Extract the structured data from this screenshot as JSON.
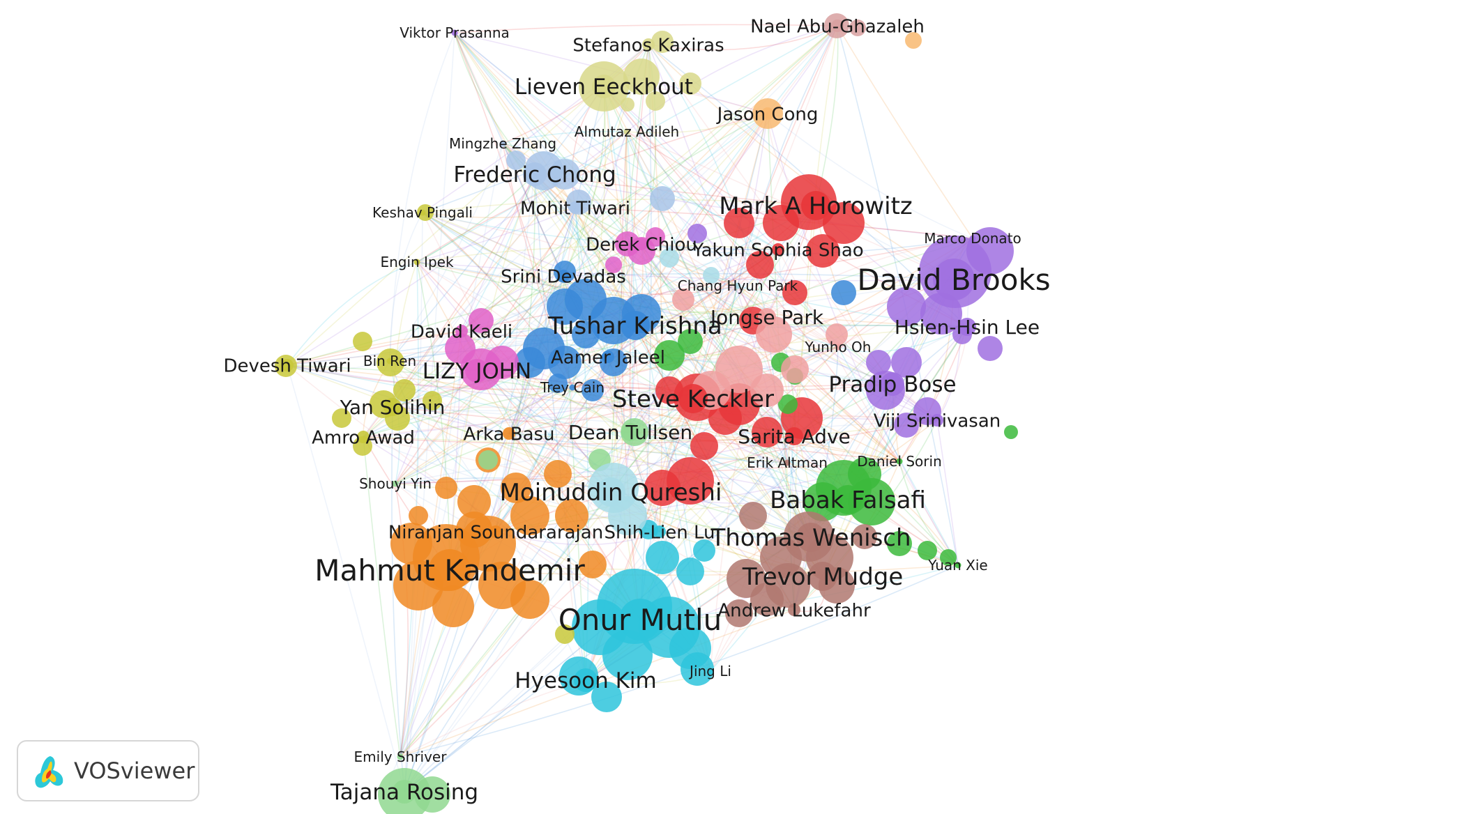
{
  "logo": {
    "name": "VOSviewer"
  },
  "palette": {
    "red": "#e8363a",
    "purple": "#a070e0",
    "green": "#3cba3c",
    "brown": "#b07870",
    "orange": "#f08a24",
    "cyan": "#2ec4dc",
    "blue": "#3a88d8",
    "yellow": "#c8c83a",
    "khaki": "#d8d88a",
    "pink": "#e060c8",
    "lightblue": "#a8c4e8",
    "salmon": "#f0a0a0",
    "lightgreen": "#90d890",
    "paleblue": "#a8dce8",
    "lightorange": "#f8b870",
    "rose": "#d8a0a0"
  },
  "nodes": [
    {
      "label": "Viktor Prasanna",
      "cluster": "purple",
      "weight": 1
    },
    {
      "label": "Nael Abu-Ghazaleh",
      "cluster": "rose",
      "weight": 2
    },
    {
      "label": "Stefanos Kaxiras",
      "cluster": "khaki",
      "weight": 2
    },
    {
      "label": "Lieven Eeckhout",
      "cluster": "khaki",
      "weight": 4
    },
    {
      "label": "Jason Cong",
      "cluster": "lightorange",
      "weight": 2
    },
    {
      "label": "Almutaz Adileh",
      "cluster": "khaki",
      "weight": 1
    },
    {
      "label": "Mingzhe Zhang",
      "cluster": "lightblue",
      "weight": 1
    },
    {
      "label": "Frederic Chong",
      "cluster": "lightblue",
      "weight": 4
    },
    {
      "label": "Mark A Horowitz",
      "cluster": "red",
      "weight": 5
    },
    {
      "label": "Keshav Pingali",
      "cluster": "yellow",
      "weight": 1
    },
    {
      "label": "Mohit Tiwari",
      "cluster": "lightblue",
      "weight": 2
    },
    {
      "label": "Marco Donato",
      "cluster": "purple",
      "weight": 1
    },
    {
      "label": "Derek Chiou",
      "cluster": "pink",
      "weight": 2
    },
    {
      "label": "Yakun Sophia Shao",
      "cluster": "red",
      "weight": 2
    },
    {
      "label": "Engin Ipek",
      "cluster": "yellow",
      "weight": 1
    },
    {
      "label": "David Brooks",
      "cluster": "purple",
      "weight": 8
    },
    {
      "label": "Srini Devadas",
      "cluster": "blue",
      "weight": 2
    },
    {
      "label": "Chang Hyun Park",
      "cluster": "paleblue",
      "weight": 1
    },
    {
      "label": "Jongse Park",
      "cluster": "salmon",
      "weight": 3
    },
    {
      "label": "Tushar Krishna",
      "cluster": "blue",
      "weight": 5
    },
    {
      "label": "David Kaeli",
      "cluster": "pink",
      "weight": 2
    },
    {
      "label": "Hsien-Hsin Lee",
      "cluster": "purple",
      "weight": 3
    },
    {
      "label": "Yunho Oh",
      "cluster": "salmon",
      "weight": 1
    },
    {
      "label": "Aamer Jaleel",
      "cluster": "blue",
      "weight": 2
    },
    {
      "label": "Devesh Tiwari",
      "cluster": "yellow",
      "weight": 2
    },
    {
      "label": "Bin Ren",
      "cluster": "yellow",
      "weight": 1
    },
    {
      "label": "LIZY JOHN",
      "cluster": "pink",
      "weight": 4
    },
    {
      "label": "Pradip Bose",
      "cluster": "purple",
      "weight": 4
    },
    {
      "label": "Trey Cain",
      "cluster": "blue",
      "weight": 1
    },
    {
      "label": "Steve Keckler",
      "cluster": "red",
      "weight": 5
    },
    {
      "label": "Yan Solihin",
      "cluster": "yellow",
      "weight": 3
    },
    {
      "label": "Viji Srinivasan",
      "cluster": "purple",
      "weight": 2
    },
    {
      "label": "Arka Basu",
      "cluster": "orange",
      "weight": 2
    },
    {
      "label": "Dean Tullsen",
      "cluster": "lightgreen",
      "weight": 3
    },
    {
      "label": "Sarita Adve",
      "cluster": "red",
      "weight": 3
    },
    {
      "label": "Amro Awad",
      "cluster": "yellow",
      "weight": 2
    },
    {
      "label": "Erik Altman",
      "cluster": "brown",
      "weight": 1
    },
    {
      "label": "Daniel Sorin",
      "cluster": "green",
      "weight": 1
    },
    {
      "label": "Shouyi Yin",
      "cluster": "lightgreen",
      "weight": 1
    },
    {
      "label": "Moinuddin Qureshi",
      "cluster": "paleblue",
      "weight": 5
    },
    {
      "label": "Babak Falsafi",
      "cluster": "green",
      "weight": 5
    },
    {
      "label": "Niranjan Soundararajan",
      "cluster": "orange",
      "weight": 2
    },
    {
      "label": "Shih-Lien Lu",
      "cluster": "cyan",
      "weight": 2
    },
    {
      "label": "Thomas Wenisch",
      "cluster": "brown",
      "weight": 5
    },
    {
      "label": "Yuan Xie",
      "cluster": "green",
      "weight": 1
    },
    {
      "label": "Mahmut Kandemir",
      "cluster": "orange",
      "weight": 8
    },
    {
      "label": "Trevor Mudge",
      "cluster": "brown",
      "weight": 5
    },
    {
      "label": "Andrew Lukefahr",
      "cluster": "brown",
      "weight": 2
    },
    {
      "label": "Onur Mutlu",
      "cluster": "cyan",
      "weight": 8
    },
    {
      "label": "Jing Li",
      "cluster": "cyan",
      "weight": 1
    },
    {
      "label": "Hyesoon Kim",
      "cluster": "cyan",
      "weight": 4
    },
    {
      "label": "Emily Shriver",
      "cluster": "lightgreen",
      "weight": 1
    },
    {
      "label": "Tajana Rosing",
      "cluster": "lightgreen",
      "weight": 4
    }
  ]
}
